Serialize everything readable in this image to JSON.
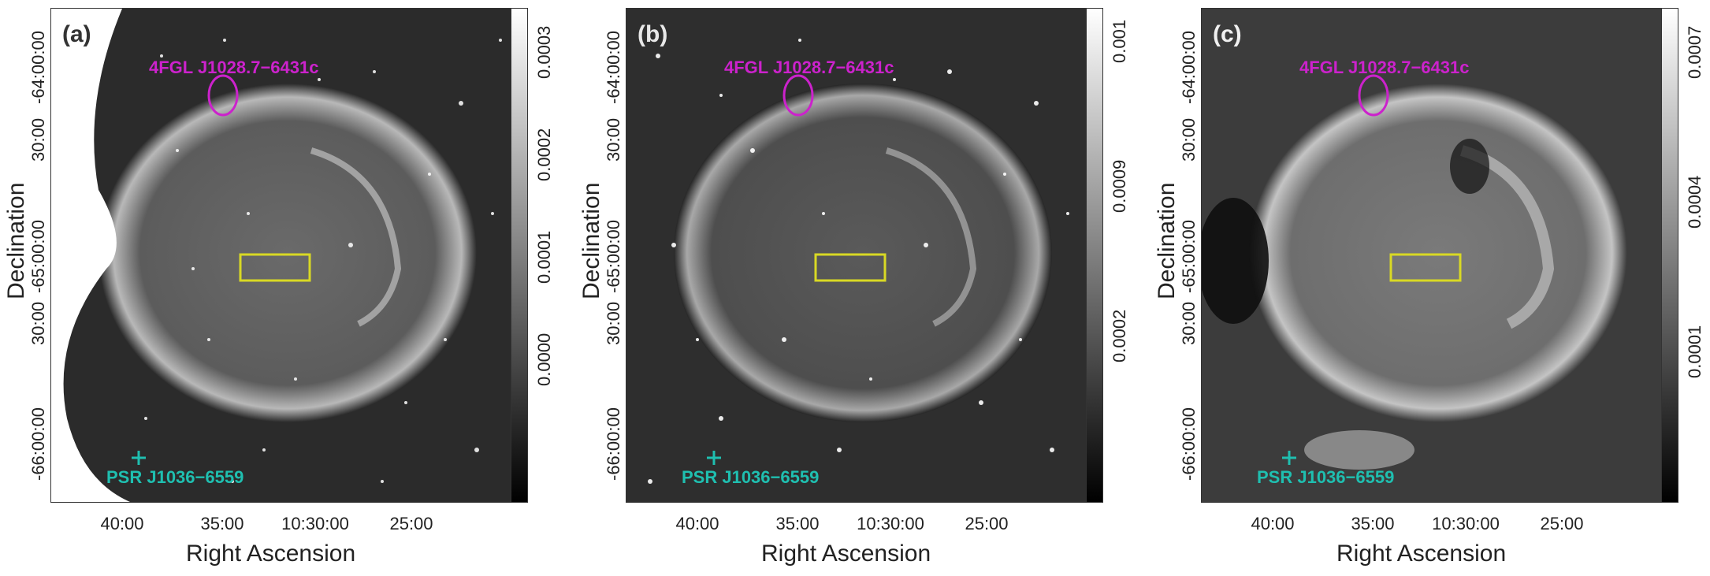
{
  "colors": {
    "source_marker": "#cc22cc",
    "region_box": "#d9d924",
    "pulsar_marker": "#1fbfb0"
  },
  "panels": [
    {
      "letter": "(a)",
      "ylabel": "Declination",
      "xlabel": "Right Ascension",
      "yticks": [
        "-64:00:00",
        "30:00",
        "-65:00:00",
        "30:00",
        "-66:00:00"
      ],
      "xticks": [
        "40:00",
        "35:00",
        "10:30:00",
        "25:00"
      ],
      "source_label": "4FGL J1028.7−6431c",
      "pulsar_label": "PSR J1036−6559",
      "colorbar_ticks": [
        "0.0003",
        "0.0002",
        "0.0001",
        "0.0000"
      ]
    },
    {
      "letter": "(b)",
      "ylabel": "Declination",
      "xlabel": "Right Ascension",
      "yticks": [
        "-64:00:00",
        "30:00",
        "-65:00:00",
        "30:00",
        "-66:00:00"
      ],
      "xticks": [
        "40:00",
        "35:00",
        "10:30:00",
        "25:00"
      ],
      "source_label": "4FGL J1028.7−6431c",
      "pulsar_label": "PSR J1036−6559",
      "colorbar_ticks": [
        "0.001",
        "0.0009",
        "0.0002"
      ]
    },
    {
      "letter": "(c)",
      "ylabel": "Declination",
      "xlabel": "Right Ascension",
      "yticks": [
        "-64:00:00",
        "30:00",
        "-65:00:00",
        "30:00",
        "-66:00:00"
      ],
      "xticks": [
        "40:00",
        "35:00",
        "10:30:00",
        "25:00"
      ],
      "source_label": "4FGL J1028.7−6431c",
      "pulsar_label": "PSR J1036−6559",
      "colorbar_ticks": [
        "0.0007",
        "0.0004",
        "0.0001"
      ]
    }
  ]
}
